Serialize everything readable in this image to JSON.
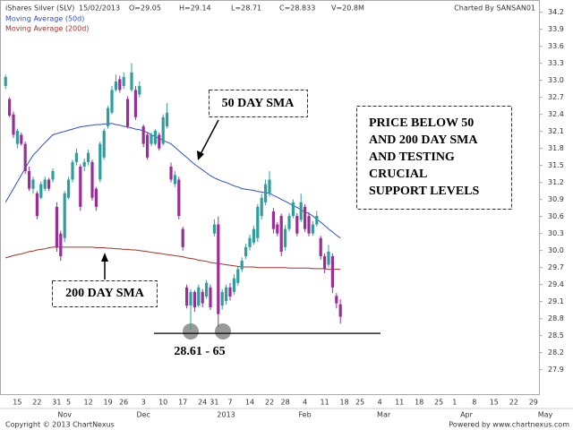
{
  "chart_data": {
    "type": "candlestick",
    "title": "iShares Silver (SLV)",
    "header": [
      "15/02/2013",
      "O=29.05",
      "H=29.14",
      "L=28.71",
      "C=28.833",
      "V=20.8M"
    ],
    "credit": "Charted By SANSAN01",
    "categories": [
      null,
      null,
      null,
      "15",
      null,
      null,
      null,
      null,
      "22",
      null,
      null,
      null,
      null,
      "31",
      null,
      null,
      "5",
      null,
      null,
      null,
      null,
      "12",
      null,
      null,
      null,
      null,
      "19",
      null,
      null,
      null,
      "26",
      null,
      null,
      null,
      null,
      "3",
      null,
      null,
      null,
      null,
      "10",
      null,
      null,
      null,
      null,
      "17",
      null,
      null,
      null,
      null,
      "24",
      null,
      null,
      "31",
      null,
      null,
      null,
      "7",
      null,
      null,
      null,
      null,
      "14",
      null,
      null,
      null,
      null,
      "22",
      null,
      null,
      null,
      "28",
      null,
      null,
      null,
      null,
      "4",
      null,
      null,
      null,
      null,
      "11",
      null,
      null,
      null,
      null,
      "18",
      null,
      null,
      null,
      "25",
      null,
      null,
      null,
      null,
      "4",
      null,
      null,
      null,
      null,
      "11",
      null,
      null,
      null,
      null,
      "18",
      null,
      null,
      null,
      null,
      "25",
      null,
      null,
      null,
      "1",
      null,
      null,
      null,
      null,
      "8",
      null,
      null,
      null,
      null,
      "15",
      null,
      null,
      null,
      null,
      "22",
      null,
      null,
      null,
      null,
      "29",
      null,
      null,
      null
    ],
    "periods": [
      null,
      null,
      null,
      null,
      null,
      null,
      null,
      null,
      null,
      null,
      null,
      null,
      null,
      null,
      null,
      "Nov",
      null,
      null,
      null,
      null,
      null,
      null,
      null,
      null,
      null,
      null,
      null,
      null,
      null,
      null,
      null,
      null,
      null,
      null,
      null,
      "Dec",
      null,
      null,
      null,
      null,
      null,
      null,
      null,
      null,
      null,
      null,
      null,
      null,
      null,
      null,
      null,
      null,
      null,
      null,
      null,
      null,
      "2013",
      null,
      null,
      null,
      null,
      null,
      null,
      null,
      null,
      null,
      null,
      null,
      null,
      null,
      null,
      null,
      null,
      null,
      null,
      null,
      "Feb",
      null,
      null,
      null,
      null,
      null,
      null,
      null,
      null,
      null,
      null,
      null,
      null,
      null,
      null,
      null,
      null,
      null,
      null,
      null,
      "Mar",
      null,
      null,
      null,
      null,
      null,
      null,
      null,
      null,
      null,
      null,
      null,
      null,
      null,
      null,
      null,
      null,
      null,
      null,
      null,
      null,
      "Apr",
      null,
      null,
      null,
      null,
      null,
      null,
      null,
      null,
      null,
      null,
      null,
      null,
      null,
      null,
      null,
      null,
      null,
      null,
      null,
      "May"
    ],
    "open": [
      32.9,
      32.67,
      32.4,
      31.88,
      32.04,
      31.88,
      31.4,
      31.09,
      31.01,
      30.93,
      31.09,
      31.25,
      31.25,
      30.77,
      30.3,
      30.22,
      30.93,
      31.25,
      31.56,
      31.48,
      31.48,
      31.56,
      31.56,
      31.09,
      31.25,
      31.64,
      32.19,
      32.43,
      32.83,
      33.02,
      32.9,
      32.67,
      32.83,
      32.83,
      32.75,
      32.19,
      32.04,
      31.88,
      31.88,
      32.04,
      31.88,
      32.19,
      31.48,
      31.17,
      31.25,
      30.38,
      29.35,
      29.03,
      29.27,
      29.03,
      29.27,
      29.19,
      29.35,
      30.3,
      30.46,
      29.03,
      29.11,
      29.35,
      29.27,
      29.43,
      29.67,
      29.9,
      30.06,
      30.14,
      30.22,
      30.61,
      30.85,
      31.01,
      30.69,
      30.46,
      30.61,
      30.06,
      30.38,
      30.61,
      30.61,
      30.54,
      30.77,
      30.61,
      30.3,
      30.46,
      30.22,
      29.9,
      29.75,
      29.9,
      29.2,
      29.05,
      null,
      null,
      null,
      null,
      null,
      null,
      null,
      null,
      null,
      null,
      null,
      null,
      null,
      null,
      null,
      null,
      null,
      null,
      null,
      null,
      null,
      null,
      null,
      null,
      null,
      null,
      null,
      null,
      null,
      null,
      null,
      null,
      null,
      null,
      null,
      null,
      null,
      null,
      null,
      null,
      null,
      null,
      null,
      null,
      null,
      null,
      null,
      null,
      null,
      null,
      null,
      null
    ],
    "high": [
      33.1,
      32.7,
      32.45,
      32.15,
      32.08,
      31.92,
      31.48,
      31.3,
      31.05,
      31.22,
      31.3,
      31.28,
      31.45,
      30.85,
      30.35,
      31.05,
      31.3,
      31.6,
      31.8,
      31.52,
      31.62,
      31.78,
      31.6,
      31.12,
      31.92,
      32.15,
      32.55,
      32.9,
      33.1,
      33.08,
      33.14,
      32.72,
      33.3,
      32.9,
      32.98,
      32.22,
      32.08,
      32.08,
      32.14,
      32.08,
      32.4,
      32.6,
      31.55,
      31.4,
      31.3,
      30.42,
      29.4,
      29.32,
      29.3,
      29.4,
      29.32,
      29.48,
      29.4,
      30.55,
      30.6,
      29.32,
      29.4,
      29.43,
      29.58,
      29.72,
      29.88,
      30.12,
      30.28,
      30.44,
      30.82,
      31.0,
      31.25,
      31.4,
      30.75,
      30.5,
      30.65,
      30.45,
      30.66,
      30.9,
      30.66,
      31.0,
      30.82,
      30.68,
      30.52,
      30.7,
      30.26,
      29.95,
      30.1,
      29.95,
      29.25,
      29.14,
      null,
      null,
      null,
      null,
      null,
      null,
      null,
      null,
      null,
      null,
      null,
      null,
      null,
      null,
      null,
      null,
      null,
      null,
      null,
      null,
      null,
      null,
      null,
      null,
      null,
      null,
      null,
      null,
      null,
      null,
      null,
      null,
      null,
      null,
      null,
      null,
      null,
      null,
      null,
      null,
      null,
      null,
      null,
      null,
      null,
      null,
      null,
      null,
      null,
      null,
      null,
      null
    ],
    "low": [
      32.85,
      32.35,
      31.98,
      31.8,
      31.85,
      31.35,
      31.05,
      31.0,
      30.55,
      30.9,
      31.05,
      31.05,
      31.2,
      29.98,
      29.82,
      30.15,
      30.9,
      31.2,
      31.5,
      30.7,
      31.4,
      31.5,
      30.88,
      30.7,
      31.2,
      31.6,
      32.15,
      32.4,
      32.8,
      32.78,
      32.85,
      32.15,
      32.8,
      32.3,
      32.7,
      31.82,
      31.6,
      31.84,
      31.85,
      31.76,
      31.85,
      32.15,
      31.2,
      31.12,
      30.55,
      30.0,
      28.98,
      28.61,
      28.92,
      29.0,
      29.0,
      29.15,
      28.95,
      30.25,
      28.65,
      28.96,
      29.05,
      29.12,
      29.22,
      29.38,
      29.62,
      29.85,
      30.0,
      30.1,
      30.15,
      30.55,
      30.8,
      30.95,
      30.3,
      30.25,
      29.9,
      30.0,
      30.34,
      30.57,
      30.25,
      30.5,
      30.33,
      30.25,
      30.26,
      30.42,
      29.84,
      29.6,
      29.7,
      29.25,
      28.98,
      28.71,
      null,
      null,
      null,
      null,
      null,
      null,
      null,
      null,
      null,
      null,
      null,
      null,
      null,
      null,
      null,
      null,
      null,
      null,
      null,
      null,
      null,
      null,
      null,
      null,
      null,
      null,
      null,
      null,
      null,
      null,
      null,
      null,
      null,
      null,
      null,
      null,
      null,
      null,
      null,
      null,
      null,
      null,
      null,
      null,
      null,
      null,
      null,
      null,
      null,
      null,
      null,
      null
    ],
    "close": [
      33.06,
      32.38,
      32.04,
      32.11,
      31.88,
      31.4,
      31.09,
      31.25,
      30.61,
      31.17,
      31.25,
      31.09,
      31.4,
      30.06,
      29.9,
      31.01,
      31.25,
      31.56,
      31.72,
      30.77,
      31.56,
      31.72,
      30.93,
      30.77,
      31.88,
      32.11,
      32.51,
      32.83,
      32.98,
      32.83,
      33.06,
      32.19,
      33.14,
      32.35,
      32.9,
      31.88,
      31.64,
      32.04,
      32.11,
      31.8,
      32.35,
      32.43,
      31.25,
      31.33,
      30.61,
      30.06,
      29.03,
      29.27,
      29.0,
      29.35,
      29.07,
      29.43,
      29.0,
      30.46,
      28.88,
      29.27,
      29.35,
      29.19,
      29.51,
      29.67,
      29.82,
      30.06,
      30.22,
      30.38,
      30.77,
      30.93,
      31.17,
      31.25,
      30.38,
      30.3,
      29.98,
      30.38,
      30.61,
      30.85,
      30.3,
      30.85,
      30.38,
      30.3,
      30.46,
      30.61,
      29.9,
      29.67,
      29.98,
      29.35,
      29.07,
      28.833,
      null,
      null,
      null,
      null,
      null,
      null,
      null,
      null,
      null,
      null,
      null,
      null,
      null,
      null,
      null,
      null,
      null,
      null,
      null,
      null,
      null,
      null,
      null,
      null,
      null,
      null,
      null,
      null,
      null,
      null,
      null,
      null,
      null,
      null,
      null,
      null,
      null,
      null,
      null,
      null,
      null,
      null,
      null,
      null,
      null,
      null,
      null,
      null,
      null,
      null,
      null,
      null
    ],
    "up_color": "#2e9e9e",
    "down_color": "#9b2d9b",
    "series": [
      {
        "name": "Moving Average (50d)",
        "color": "#2b4fd0",
        "values": [
          30.85,
          30.97,
          31.09,
          31.21,
          31.33,
          31.45,
          31.57,
          31.68,
          31.75,
          31.83,
          31.9,
          31.97,
          32.04,
          32.06,
          32.08,
          32.1,
          32.12,
          32.14,
          32.16,
          32.18,
          32.19,
          32.2,
          32.21,
          32.22,
          32.22,
          32.23,
          32.23,
          32.24,
          32.22,
          32.21,
          32.19,
          32.18,
          32.16,
          32.14,
          32.13,
          32.11,
          32.08,
          32.04,
          32.01,
          31.98,
          31.94,
          31.91,
          31.88,
          31.82,
          31.76,
          31.7,
          31.64,
          31.58,
          31.52,
          31.47,
          31.42,
          31.37,
          31.32,
          31.28,
          31.25,
          31.22,
          31.2,
          31.17,
          31.14,
          31.12,
          31.09,
          31.08,
          31.07,
          31.06,
          31.04,
          31.03,
          31.02,
          31.01,
          30.97,
          30.94,
          30.9,
          30.87,
          30.83,
          30.79,
          30.76,
          30.72,
          30.68,
          30.65,
          30.61,
          30.55,
          30.5,
          30.44,
          30.38,
          30.33,
          30.27,
          30.22,
          null,
          null,
          null,
          null,
          null,
          null,
          null,
          null,
          null,
          null,
          null,
          null,
          null,
          null,
          null,
          null,
          null,
          null,
          null,
          null,
          null,
          null,
          null,
          null,
          null,
          null,
          null,
          null,
          null,
          null,
          null,
          null,
          null,
          null,
          null,
          null,
          null,
          null,
          null,
          null,
          null,
          null,
          null,
          null,
          null,
          null,
          null,
          null,
          null,
          null,
          null,
          null
        ]
      },
      {
        "name": "Moving Average (200d)",
        "color": "#a3312c",
        "values": [
          29.87,
          29.89,
          29.91,
          29.93,
          29.94,
          29.96,
          29.98,
          29.99,
          30.01,
          30.02,
          30.03,
          30.05,
          30.06,
          30.06,
          30.06,
          30.06,
          30.06,
          30.06,
          30.06,
          30.06,
          30.06,
          30.06,
          30.06,
          30.05,
          30.05,
          30.05,
          30.04,
          30.04,
          30.03,
          30.03,
          30.02,
          30.02,
          30.01,
          30.01,
          30.0,
          29.99,
          29.98,
          29.97,
          29.96,
          29.95,
          29.94,
          29.93,
          29.92,
          29.91,
          29.9,
          29.89,
          29.87,
          29.86,
          29.85,
          29.83,
          29.82,
          29.81,
          29.79,
          29.78,
          29.77,
          29.76,
          29.75,
          29.74,
          29.73,
          29.72,
          29.71,
          29.71,
          29.71,
          29.71,
          29.7,
          29.7,
          29.7,
          29.7,
          29.7,
          29.7,
          29.7,
          29.7,
          29.69,
          29.69,
          29.69,
          29.69,
          29.69,
          29.69,
          29.68,
          29.68,
          29.68,
          29.68,
          29.67,
          29.67,
          29.67,
          29.67,
          null,
          null,
          null,
          null,
          null,
          null,
          null,
          null,
          null,
          null,
          null,
          null,
          null,
          null,
          null,
          null,
          null,
          null,
          null,
          null,
          null,
          null,
          null,
          null,
          null,
          null,
          null,
          null,
          null,
          null,
          null,
          null,
          null,
          null,
          null,
          null,
          null,
          null,
          null,
          null,
          null,
          null,
          null,
          null,
          null,
          null,
          null,
          null,
          null,
          null,
          null,
          null
        ]
      }
    ],
    "ylim": [
      27.5,
      34.4
    ],
    "yticks": [
      34.2,
      33.9,
      33.6,
      33.3,
      {
        "value": 33,
        "label": "33.0"
      },
      32.7,
      32.4,
      32.1,
      31.8,
      31.5,
      31.2,
      30.9,
      30.6,
      30.3,
      {
        "value": 30,
        "label": "30.0"
      },
      29.7,
      29.4,
      29.1,
      28.8,
      28.5,
      28.2,
      27.9
    ],
    "support_level": 28.54,
    "annotations": {
      "sma50": "50 DAY SMA",
      "sma200": "200 DAY SMA",
      "support": "28.61 - 65",
      "note": [
        "PRICE BELOW 50",
        "AND 200 DAY SMA",
        "AND TESTING",
        "CRUCIAL",
        "SUPPORT LEVELS"
      ]
    },
    "footer": [
      "Copyright © 2013 ChartNexus",
      "Powered by www.chartnexus.com"
    ]
  }
}
